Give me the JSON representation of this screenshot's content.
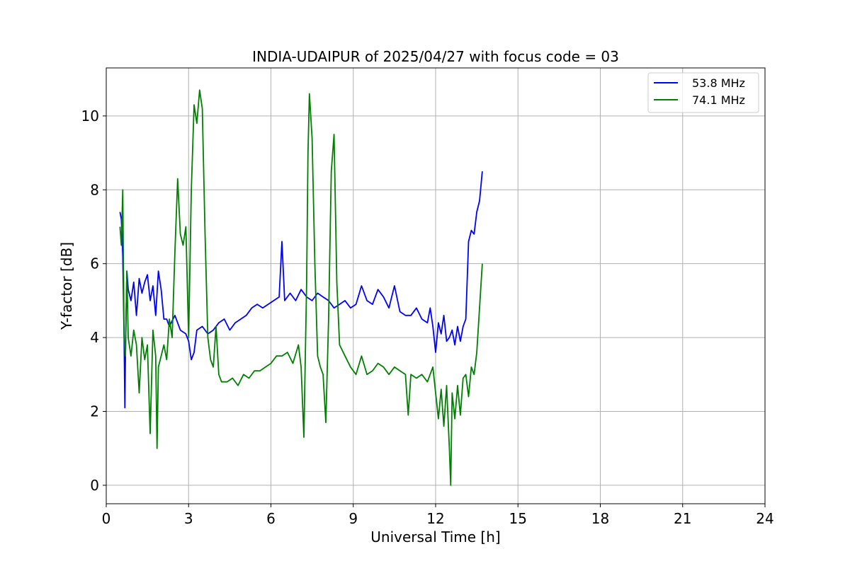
{
  "chart_data": {
    "type": "line",
    "title": "INDIA-UDAIPUR of 2025/04/27 with focus code = 03",
    "xlabel": "Universal Time [h]",
    "ylabel": "Y-factor [dB]",
    "xlim": [
      0,
      24
    ],
    "ylim": [
      -0.5,
      11.3
    ],
    "xticks": [
      0,
      3,
      6,
      9,
      12,
      15,
      18,
      21,
      24
    ],
    "yticks": [
      0,
      2,
      4,
      6,
      8,
      10
    ],
    "grid": true,
    "legend_position": "top-right",
    "series": [
      {
        "name": "53.8 MHz",
        "color": "#0000ff",
        "points": [
          [
            0.5,
            7.4
          ],
          [
            0.55,
            7.2
          ],
          [
            0.6,
            6.2
          ],
          [
            0.65,
            4.0
          ],
          [
            0.68,
            2.1
          ],
          [
            0.7,
            3.6
          ],
          [
            0.75,
            5.8
          ],
          [
            0.8,
            5.3
          ],
          [
            0.9,
            5.0
          ],
          [
            1.0,
            5.5
          ],
          [
            1.1,
            4.6
          ],
          [
            1.2,
            5.6
          ],
          [
            1.3,
            5.2
          ],
          [
            1.4,
            5.5
          ],
          [
            1.5,
            5.7
          ],
          [
            1.6,
            5.0
          ],
          [
            1.7,
            5.4
          ],
          [
            1.8,
            4.6
          ],
          [
            1.9,
            5.8
          ],
          [
            2.0,
            5.3
          ],
          [
            2.1,
            4.5
          ],
          [
            2.2,
            4.5
          ],
          [
            2.3,
            4.3
          ],
          [
            2.5,
            4.6
          ],
          [
            2.7,
            4.2
          ],
          [
            2.9,
            4.1
          ],
          [
            3.0,
            3.9
          ],
          [
            3.1,
            3.4
          ],
          [
            3.2,
            3.6
          ],
          [
            3.3,
            4.2
          ],
          [
            3.5,
            4.3
          ],
          [
            3.7,
            4.1
          ],
          [
            3.9,
            4.2
          ],
          [
            4.1,
            4.4
          ],
          [
            4.3,
            4.5
          ],
          [
            4.5,
            4.2
          ],
          [
            4.7,
            4.4
          ],
          [
            4.9,
            4.5
          ],
          [
            5.1,
            4.6
          ],
          [
            5.3,
            4.8
          ],
          [
            5.5,
            4.9
          ],
          [
            5.7,
            4.8
          ],
          [
            5.9,
            4.9
          ],
          [
            6.1,
            5.0
          ],
          [
            6.3,
            5.1
          ],
          [
            6.4,
            6.6
          ],
          [
            6.5,
            5.0
          ],
          [
            6.7,
            5.2
          ],
          [
            6.9,
            5.0
          ],
          [
            7.1,
            5.3
          ],
          [
            7.3,
            5.1
          ],
          [
            7.5,
            5.0
          ],
          [
            7.7,
            5.2
          ],
          [
            7.9,
            5.1
          ],
          [
            8.1,
            5.0
          ],
          [
            8.3,
            4.8
          ],
          [
            8.5,
            4.9
          ],
          [
            8.7,
            5.0
          ],
          [
            8.9,
            4.8
          ],
          [
            9.1,
            4.9
          ],
          [
            9.3,
            5.4
          ],
          [
            9.5,
            5.0
          ],
          [
            9.7,
            4.9
          ],
          [
            9.9,
            5.3
          ],
          [
            10.1,
            5.1
          ],
          [
            10.3,
            4.8
          ],
          [
            10.5,
            5.4
          ],
          [
            10.7,
            4.7
          ],
          [
            10.9,
            4.6
          ],
          [
            11.1,
            4.6
          ],
          [
            11.3,
            4.8
          ],
          [
            11.5,
            4.5
          ],
          [
            11.7,
            4.4
          ],
          [
            11.8,
            4.8
          ],
          [
            11.9,
            4.3
          ],
          [
            12.0,
            3.6
          ],
          [
            12.1,
            4.4
          ],
          [
            12.2,
            4.1
          ],
          [
            12.3,
            4.6
          ],
          [
            12.4,
            3.9
          ],
          [
            12.5,
            4.0
          ],
          [
            12.6,
            4.2
          ],
          [
            12.7,
            3.8
          ],
          [
            12.8,
            4.3
          ],
          [
            12.9,
            3.9
          ],
          [
            13.0,
            4.3
          ],
          [
            13.1,
            4.5
          ],
          [
            13.2,
            6.6
          ],
          [
            13.3,
            6.9
          ],
          [
            13.4,
            6.8
          ],
          [
            13.5,
            7.4
          ],
          [
            13.6,
            7.7
          ],
          [
            13.7,
            8.5
          ]
        ]
      },
      {
        "name": "74.1 MHz",
        "color": "#008000",
        "points": [
          [
            0.5,
            7.0
          ],
          [
            0.55,
            6.5
          ],
          [
            0.6,
            8.0
          ],
          [
            0.65,
            4.0
          ],
          [
            0.7,
            3.5
          ],
          [
            0.75,
            5.8
          ],
          [
            0.8,
            4.0
          ],
          [
            0.9,
            3.5
          ],
          [
            1.0,
            4.2
          ],
          [
            1.1,
            3.8
          ],
          [
            1.2,
            2.5
          ],
          [
            1.3,
            4.0
          ],
          [
            1.4,
            3.4
          ],
          [
            1.5,
            3.8
          ],
          [
            1.6,
            1.4
          ],
          [
            1.7,
            4.2
          ],
          [
            1.8,
            3.5
          ],
          [
            1.85,
            1.0
          ],
          [
            1.9,
            3.2
          ],
          [
            2.0,
            3.5
          ],
          [
            2.1,
            3.8
          ],
          [
            2.2,
            3.4
          ],
          [
            2.3,
            4.5
          ],
          [
            2.4,
            4.0
          ],
          [
            2.5,
            6.3
          ],
          [
            2.6,
            8.3
          ],
          [
            2.7,
            6.8
          ],
          [
            2.8,
            6.5
          ],
          [
            2.9,
            7.0
          ],
          [
            3.0,
            4.0
          ],
          [
            3.1,
            8.0
          ],
          [
            3.2,
            10.3
          ],
          [
            3.3,
            9.8
          ],
          [
            3.4,
            10.7
          ],
          [
            3.5,
            10.2
          ],
          [
            3.6,
            6.8
          ],
          [
            3.7,
            4.0
          ],
          [
            3.8,
            3.4
          ],
          [
            3.9,
            3.2
          ],
          [
            4.0,
            4.3
          ],
          [
            4.1,
            3.0
          ],
          [
            4.2,
            2.8
          ],
          [
            4.4,
            2.8
          ],
          [
            4.6,
            2.9
          ],
          [
            4.8,
            2.7
          ],
          [
            5.0,
            3.0
          ],
          [
            5.2,
            2.9
          ],
          [
            5.4,
            3.1
          ],
          [
            5.6,
            3.1
          ],
          [
            5.8,
            3.2
          ],
          [
            6.0,
            3.3
          ],
          [
            6.2,
            3.5
          ],
          [
            6.4,
            3.5
          ],
          [
            6.6,
            3.6
          ],
          [
            6.8,
            3.3
          ],
          [
            7.0,
            3.8
          ],
          [
            7.1,
            3.2
          ],
          [
            7.2,
            1.3
          ],
          [
            7.3,
            5.5
          ],
          [
            7.35,
            9.0
          ],
          [
            7.4,
            10.6
          ],
          [
            7.5,
            9.4
          ],
          [
            7.6,
            6.0
          ],
          [
            7.7,
            3.5
          ],
          [
            7.8,
            3.2
          ],
          [
            7.9,
            3.0
          ],
          [
            8.0,
            1.7
          ],
          [
            8.1,
            4.5
          ],
          [
            8.2,
            8.5
          ],
          [
            8.3,
            9.5
          ],
          [
            8.4,
            5.5
          ],
          [
            8.5,
            3.8
          ],
          [
            8.7,
            3.5
          ],
          [
            8.9,
            3.2
          ],
          [
            9.1,
            3.0
          ],
          [
            9.3,
            3.5
          ],
          [
            9.5,
            3.0
          ],
          [
            9.7,
            3.1
          ],
          [
            9.9,
            3.3
          ],
          [
            10.1,
            3.2
          ],
          [
            10.3,
            3.0
          ],
          [
            10.5,
            3.2
          ],
          [
            10.7,
            3.1
          ],
          [
            10.9,
            3.0
          ],
          [
            11.0,
            1.9
          ],
          [
            11.1,
            3.0
          ],
          [
            11.3,
            2.9
          ],
          [
            11.5,
            3.0
          ],
          [
            11.7,
            2.8
          ],
          [
            11.9,
            3.2
          ],
          [
            12.0,
            2.5
          ],
          [
            12.1,
            1.8
          ],
          [
            12.2,
            2.6
          ],
          [
            12.3,
            1.6
          ],
          [
            12.4,
            2.7
          ],
          [
            12.5,
            1.0
          ],
          [
            12.55,
            0.0
          ],
          [
            12.6,
            2.5
          ],
          [
            12.7,
            1.8
          ],
          [
            12.8,
            2.7
          ],
          [
            12.9,
            1.9
          ],
          [
            13.0,
            2.9
          ],
          [
            13.1,
            3.0
          ],
          [
            13.2,
            2.4
          ],
          [
            13.3,
            3.2
          ],
          [
            13.4,
            3.0
          ],
          [
            13.5,
            3.6
          ],
          [
            13.6,
            4.8
          ],
          [
            13.7,
            6.0
          ]
        ]
      }
    ]
  },
  "colors": {
    "background": "#ffffff",
    "grid": "#b0b0b0",
    "axis": "#000000",
    "legend_border": "#cccccc"
  }
}
